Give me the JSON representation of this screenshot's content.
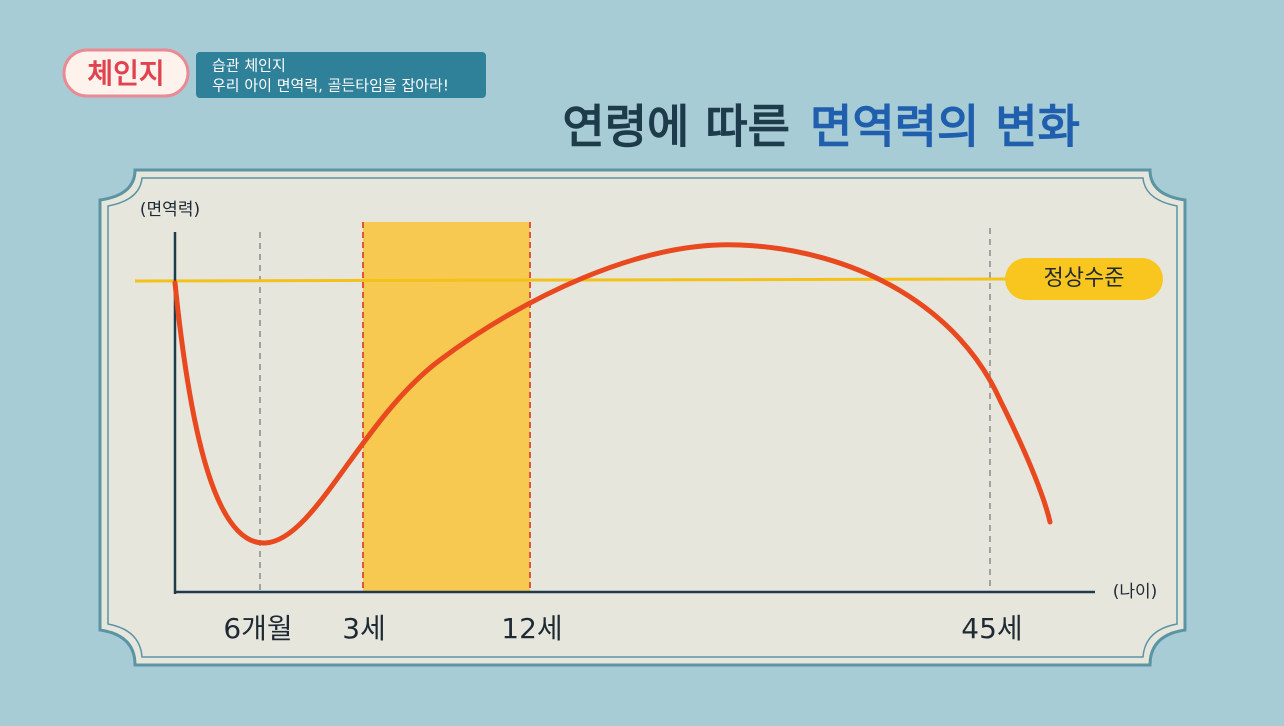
{
  "logo": "체인지",
  "program": {
    "line1": "습관 체인지",
    "line2": "우리 아이 면역력, 골든타임을 잡아라!"
  },
  "title": {
    "part1": "연령에 따른",
    "part2": "면역력의 변화"
  },
  "graph": {
    "y_axis_label": "(면역력)",
    "x_axis_label": "(나이)",
    "normal_level": "정상수준",
    "x_labels": [
      "6개월",
      "3세",
      "12세",
      "45세"
    ]
  }
}
